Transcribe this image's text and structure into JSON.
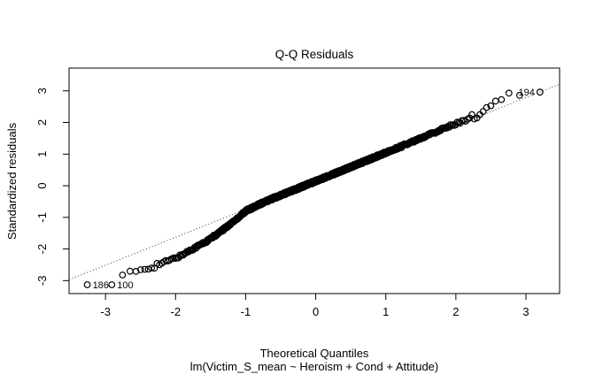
{
  "chart_data": {
    "type": "scatter",
    "subtype": "qq-plot",
    "title": "Q-Q Residuals",
    "xlabel": "Theoretical Quantiles",
    "ylabel": "Standardized residuals",
    "caption": "lm(Victim_S_mean ~ Heroism + Cond + Attitude)",
    "x_ticks": [
      -3,
      -2,
      -1,
      0,
      1,
      2,
      3
    ],
    "y_ticks": [
      -3,
      -2,
      -1,
      0,
      1,
      2,
      3
    ],
    "xlim": [
      -3.52,
      3.48
    ],
    "ylim": [
      -3.41,
      3.72
    ],
    "grid": false,
    "legend": null,
    "marker": "open-circle",
    "n_points": 900,
    "ref_line": {
      "slope": 0.883,
      "intercept": 0.137,
      "style": "dotted"
    },
    "band_anchors": [
      [
        -3.26,
        -3.13
      ],
      [
        -2.91,
        -3.13
      ],
      [
        -2.75,
        -2.85
      ],
      [
        -2.55,
        -2.7
      ],
      [
        -2.35,
        -2.56
      ],
      [
        -2.15,
        -2.41
      ],
      [
        -1.95,
        -2.24
      ],
      [
        -1.75,
        -1.99
      ],
      [
        -1.55,
        -1.75
      ],
      [
        -1.35,
        -1.44
      ],
      [
        -1.15,
        -1.09
      ],
      [
        -1.0,
        -0.8
      ],
      [
        -0.85,
        -0.64
      ],
      [
        -0.65,
        -0.43
      ],
      [
        -0.45,
        -0.26
      ],
      [
        -0.25,
        -0.08
      ],
      [
        -0.05,
        0.1
      ],
      [
        0.15,
        0.28
      ],
      [
        0.35,
        0.46
      ],
      [
        0.55,
        0.64
      ],
      [
        0.75,
        0.82
      ],
      [
        0.95,
        1.0
      ],
      [
        1.15,
        1.18
      ],
      [
        1.35,
        1.36
      ],
      [
        1.55,
        1.55
      ],
      [
        1.75,
        1.73
      ],
      [
        1.95,
        1.92
      ],
      [
        2.15,
        2.08
      ],
      [
        2.3,
        2.23
      ],
      [
        2.45,
        2.48
      ],
      [
        2.6,
        2.72
      ],
      [
        2.75,
        2.88
      ],
      [
        2.9,
        2.92
      ],
      [
        3.2,
        2.96
      ]
    ],
    "labeled_points": [
      {
        "label": "186",
        "x": -3.26,
        "y": -3.13,
        "label_side": "right"
      },
      {
        "label": "100",
        "x": -2.91,
        "y": -3.13,
        "label_side": "right"
      },
      {
        "label": "194",
        "x": 3.2,
        "y": 2.96,
        "label_side": "left"
      }
    ]
  },
  "colors": {
    "background": "#ffffff",
    "foreground": "#000000",
    "ref_line": "#555555"
  }
}
